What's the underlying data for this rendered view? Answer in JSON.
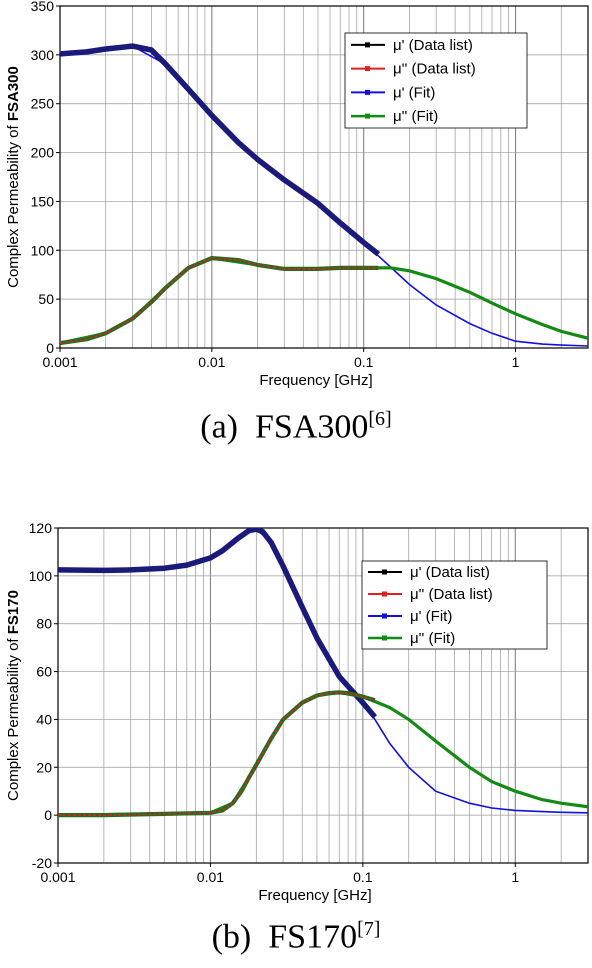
{
  "captions": {
    "a": {
      "label": "(a)",
      "name": "FSA300",
      "ref": "[6]"
    },
    "b": {
      "label": "(b)",
      "name": "FS170",
      "ref": "[7]"
    }
  },
  "colors": {
    "mu_prime_data": "#000000",
    "mu_dprime_data": "#e02020",
    "mu_prime_fit": "#1010e0",
    "mu_dprime_fit": "#138a13",
    "data_prime_band": "#1a1a7a"
  },
  "chart_data": [
    {
      "id": "a",
      "type": "line",
      "title": "",
      "xlabel": "Frequency [GHz]",
      "ylabel_prefix": "Complex Permeability of ",
      "ylabel_bold": "FSA300",
      "xscale": "log",
      "xlim": [
        0.001,
        3
      ],
      "ylim": [
        0,
        350
      ],
      "yticks": [
        0,
        50,
        100,
        150,
        200,
        250,
        300,
        350
      ],
      "xticks": [
        0.001,
        0.01,
        0.1,
        1
      ],
      "xtick_labels": [
        "0.001",
        "0.01",
        "0.1",
        "1"
      ],
      "grid": true,
      "legend_position": "top-right",
      "series": [
        {
          "name": "μ' (Data list)",
          "color": "#000000",
          "x": [
            0.001,
            0.0015,
            0.002,
            0.003,
            0.004,
            0.005,
            0.007,
            0.01,
            0.015,
            0.02,
            0.03,
            0.05,
            0.07,
            0.1,
            0.125
          ],
          "y": [
            301,
            303,
            306,
            309,
            305,
            290,
            265,
            238,
            210,
            193,
            172,
            148,
            128,
            108,
            96
          ]
        },
        {
          "name": "μ'' (Data list)",
          "color": "#e02020",
          "x": [
            0.001,
            0.0015,
            0.002,
            0.003,
            0.004,
            0.005,
            0.007,
            0.01,
            0.015,
            0.02,
            0.03,
            0.05,
            0.07,
            0.1,
            0.125
          ],
          "y": [
            5,
            9,
            15,
            30,
            47,
            62,
            82,
            92,
            90,
            85,
            81,
            81,
            82,
            82,
            82
          ]
        },
        {
          "name": "μ' (Fit)",
          "color": "#1010e0",
          "x": [
            0.001,
            0.002,
            0.003,
            0.005,
            0.007,
            0.01,
            0.02,
            0.03,
            0.05,
            0.07,
            0.1,
            0.15,
            0.2,
            0.3,
            0.5,
            0.7,
            1,
            1.5,
            2,
            3
          ],
          "y": [
            301,
            306,
            309,
            290,
            265,
            238,
            193,
            172,
            148,
            128,
            108,
            83,
            65,
            44,
            25,
            15,
            7,
            4,
            3,
            2
          ]
        },
        {
          "name": "μ'' (Fit)",
          "color": "#138a13",
          "x": [
            0.001,
            0.002,
            0.003,
            0.005,
            0.007,
            0.01,
            0.02,
            0.03,
            0.05,
            0.07,
            0.1,
            0.15,
            0.2,
            0.3,
            0.5,
            0.7,
            1,
            1.5,
            2,
            3
          ],
          "y": [
            5,
            15,
            30,
            62,
            82,
            92,
            85,
            81,
            81,
            82,
            82,
            82,
            79,
            71,
            57,
            46,
            35,
            24,
            17,
            10
          ]
        }
      ]
    },
    {
      "id": "b",
      "type": "line",
      "title": "",
      "xlabel": "Frequency [GHz]",
      "ylabel_prefix": "Complex Permeability of ",
      "ylabel_bold": "FS170",
      "xscale": "log",
      "xlim": [
        0.001,
        3
      ],
      "ylim": [
        -20,
        120
      ],
      "yticks": [
        -20,
        0,
        20,
        40,
        60,
        80,
        100,
        120
      ],
      "xticks": [
        0.001,
        0.01,
        0.1,
        1
      ],
      "xtick_labels": [
        "0.001",
        "0.01",
        "0.1",
        "1"
      ],
      "grid": true,
      "legend_position": "top-right",
      "series": [
        {
          "name": "μ' (Data list)",
          "color": "#000000",
          "x": [
            0.001,
            0.002,
            0.003,
            0.005,
            0.007,
            0.01,
            0.012,
            0.015,
            0.018,
            0.02,
            0.022,
            0.025,
            0.03,
            0.04,
            0.05,
            0.07,
            0.1,
            0.12
          ],
          "y": [
            102.5,
            102.3,
            102.5,
            103.2,
            104.5,
            107.5,
            110.5,
            115.5,
            119,
            119.5,
            118.5,
            114,
            104,
            87,
            74,
            58,
            47,
            41
          ]
        },
        {
          "name": "μ'' (Data list)",
          "color": "#e02020",
          "x": [
            0.001,
            0.002,
            0.005,
            0.01,
            0.012,
            0.014,
            0.016,
            0.018,
            0.02,
            0.025,
            0.03,
            0.04,
            0.05,
            0.06,
            0.07,
            0.08,
            0.1,
            0.12
          ],
          "y": [
            0,
            0,
            0.5,
            1,
            2,
            5,
            10,
            16,
            21,
            32,
            40,
            47,
            50,
            51,
            51.3,
            51,
            49.5,
            48
          ]
        },
        {
          "name": "μ' (Fit)",
          "color": "#1010e0",
          "x": [
            0.001,
            0.005,
            0.01,
            0.015,
            0.02,
            0.025,
            0.03,
            0.05,
            0.07,
            0.1,
            0.12,
            0.15,
            0.2,
            0.3,
            0.5,
            0.7,
            1,
            1.5,
            2,
            3
          ],
          "y": [
            102.5,
            103.2,
            107.5,
            115.5,
            119.5,
            114,
            104,
            74,
            58,
            47,
            40,
            30,
            20,
            10,
            5,
            3,
            2,
            1.5,
            1.2,
            1
          ]
        },
        {
          "name": "μ'' (Fit)",
          "color": "#138a13",
          "x": [
            0.001,
            0.005,
            0.01,
            0.014,
            0.018,
            0.02,
            0.025,
            0.03,
            0.04,
            0.05,
            0.07,
            0.1,
            0.15,
            0.2,
            0.3,
            0.5,
            0.7,
            1,
            1.5,
            2,
            3
          ],
          "y": [
            0,
            0.5,
            1,
            5,
            16,
            21,
            32,
            40,
            47,
            50,
            51.3,
            49.5,
            45,
            40,
            31,
            20,
            14,
            10,
            6.5,
            5,
            3.5
          ]
        }
      ]
    }
  ]
}
